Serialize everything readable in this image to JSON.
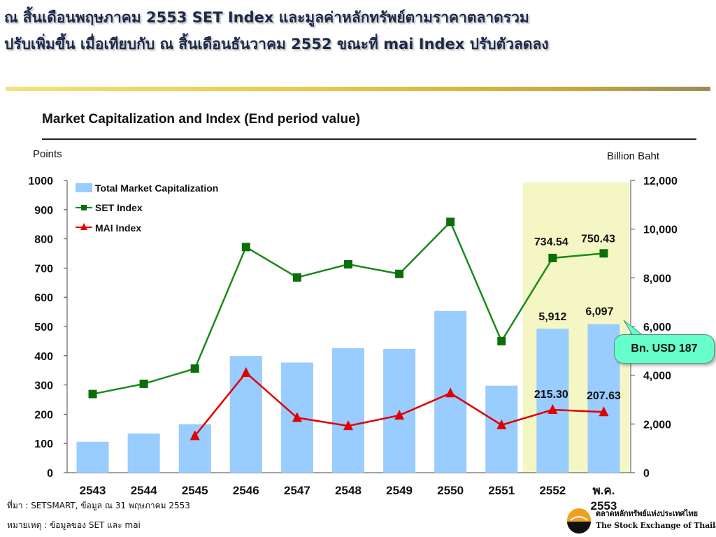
{
  "slide": {
    "title_line1": "ณ สิ้นเดือนพฤษภาคม 2553  SET Index และมูลค่าหลักทรัพย์ตามราคาตลาดรวม",
    "title_line2": "ปรับเพิ่มขึ้น เมื่อเทียบกับ ณ สิ้นเดือนธันวาคม 2552 ขณะที่ mai Index ปรับตัวลดลง",
    "source_note": "ที่มา : SETSMART, ข้อมูล ณ 31 พฤษภาคม 2553",
    "remark_note": "หมายเหตุ : ข้อมูลของ SET และ mai",
    "callout": "Bn. USD 187"
  },
  "logo": {
    "line1": "ตลาดหลักทรัพย์แห่งประเทศไทย",
    "line2": "The Stock Exchange of Thailand"
  },
  "colors": {
    "bar": "#99ccff",
    "set_line": "#1a8a1a",
    "set_marker": "#0a6e0a",
    "mai_line": "#e00000",
    "highlight": "#f4f7c4",
    "callout": "#66ffcc",
    "title": "#1c2a4a"
  },
  "chart_data": {
    "type": "bar+line",
    "title": "Market Capitalization and Index (End period value)",
    "ylabel_left": "Points",
    "ylabel_right": "Billion Baht",
    "categories": [
      "2543",
      "2544",
      "2545",
      "2546",
      "2547",
      "2548",
      "2549",
      "2550",
      "2551",
      "2552",
      "พ.ค. 2553"
    ],
    "ylim_left": [
      0,
      1000
    ],
    "yticks_left": [
      "0",
      "100",
      "200",
      "300",
      "400",
      "500",
      "600",
      "700",
      "800",
      "900",
      "1000"
    ],
    "ylim_right": [
      0,
      12000
    ],
    "yticks_right": [
      "0",
      "2,000",
      "4,000",
      "6,000",
      "8,000",
      "10,000",
      "12,000"
    ],
    "series": [
      {
        "name": "Total Market Capitalization",
        "kind": "bar",
        "axis": "right",
        "values": [
          1270,
          1610,
          1990,
          4790,
          4520,
          5110,
          5080,
          6640,
          3570,
          5912,
          6097
        ]
      },
      {
        "name": "SET Index",
        "kind": "line",
        "marker": "square",
        "axis": "left",
        "values": [
          269,
          304,
          356,
          772,
          668,
          713,
          680,
          858,
          450,
          734.54,
          750.43
        ]
      },
      {
        "name": "MAI Index",
        "kind": "line",
        "marker": "triangle",
        "axis": "left",
        "values": [
          null,
          null,
          126,
          342,
          188,
          160,
          196,
          272,
          163,
          215.3,
          207.63
        ]
      }
    ],
    "data_labels": [
      {
        "series": "SET Index",
        "category": "2552",
        "text": "734.54"
      },
      {
        "series": "SET Index",
        "category": "พ.ค. 2553",
        "text": "750.43"
      },
      {
        "series": "Total Market Capitalization",
        "category": "2552",
        "text": "5,912"
      },
      {
        "series": "Total Market Capitalization",
        "category": "พ.ค. 2553",
        "text": "6,097"
      },
      {
        "series": "MAI Index",
        "category": "2552",
        "text": "215.30"
      },
      {
        "series": "MAI Index",
        "category": "พ.ค. 2553",
        "text": "207.63"
      }
    ],
    "highlight_categories": [
      "2552",
      "พ.ค. 2553"
    ],
    "legend": "top-left",
    "grid": false
  }
}
